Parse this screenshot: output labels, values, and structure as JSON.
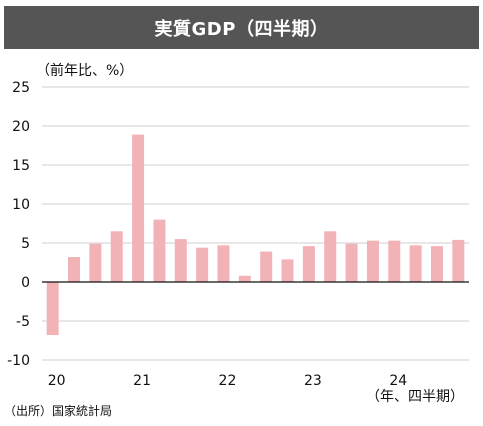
{
  "title": "実質GDP（四半期）",
  "unit_label": "（前年比、%）",
  "source": "（出所）国家統計局",
  "colors": {
    "bar": "#f2b3b6",
    "grid": "#cfcfcf",
    "header_bg": "#555555"
  },
  "chart_data": {
    "type": "bar",
    "title": "実質GDP（四半期）",
    "ylabel": "（前年比、%）",
    "xlabel": "（年、四半期）",
    "ylim": [
      -10,
      25
    ],
    "yticks": [
      25,
      20,
      15,
      10,
      5,
      0,
      -5,
      -10
    ],
    "grid": true,
    "year_labels": [
      "20",
      "21",
      "22",
      "23",
      "24"
    ],
    "values": [
      -6.8,
      3.2,
      4.9,
      6.5,
      18.9,
      8.0,
      5.5,
      4.4,
      4.7,
      0.8,
      3.9,
      2.9,
      4.6,
      6.5,
      4.9,
      5.3,
      5.3,
      4.7,
      4.6,
      5.4
    ]
  }
}
